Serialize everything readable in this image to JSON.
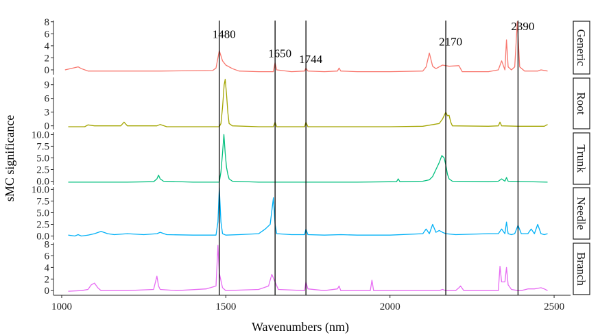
{
  "chart_data": {
    "type": "line",
    "xlabel": "Wavenumbers (nm)",
    "ylabel": "sMC significance",
    "xlim": [
      975,
      2550
    ],
    "x_ticks": [
      1000,
      1500,
      2000,
      2500
    ],
    "grid": false,
    "legend": "none",
    "vlines": [
      1480,
      1650,
      1744,
      2170,
      2390
    ],
    "annotations": [
      {
        "text": "1480",
        "x": 1480,
        "y": 6.0
      },
      {
        "text": "1650",
        "x": 1650,
        "y": 2.8
      },
      {
        "text": "1744",
        "x": 1744,
        "y": 1.8
      },
      {
        "text": "2170",
        "x": 2170,
        "y": 4.7
      },
      {
        "text": "2390",
        "x": 2390,
        "y": 7.3
      }
    ],
    "panels": [
      {
        "name": "Generic",
        "color": "#F8766D",
        "ylim": [
          -0.8,
          8.2
        ],
        "ticks": [
          0,
          2,
          4,
          6,
          8
        ],
        "tick_labels": [
          "0",
          "2",
          "4",
          "6",
          "8"
        ],
        "points": [
          [
            1010,
            0
          ],
          [
            1050,
            0.5
          ],
          [
            1060,
            0.2
          ],
          [
            1080,
            -0.2
          ],
          [
            1200,
            -0.2
          ],
          [
            1300,
            -0.2
          ],
          [
            1460,
            -0.1
          ],
          [
            1470,
            0.3
          ],
          [
            1480,
            3.2
          ],
          [
            1490,
            1.5
          ],
          [
            1500,
            0.8
          ],
          [
            1520,
            0.2
          ],
          [
            1540,
            -0.2
          ],
          [
            1600,
            -0.3
          ],
          [
            1645,
            -0.3
          ],
          [
            1650,
            1.2
          ],
          [
            1655,
            0
          ],
          [
            1700,
            -0.3
          ],
          [
            1740,
            -0.2
          ],
          [
            1744,
            0.3
          ],
          [
            1750,
            -0.2
          ],
          [
            1800,
            -0.3
          ],
          [
            1840,
            -0.2
          ],
          [
            1845,
            0.3
          ],
          [
            1850,
            -0.2
          ],
          [
            1900,
            -0.3
          ],
          [
            2000,
            -0.3
          ],
          [
            2100,
            -0.2
          ],
          [
            2110,
            0.5
          ],
          [
            2120,
            2.8
          ],
          [
            2130,
            0.6
          ],
          [
            2140,
            0.2
          ],
          [
            2150,
            0.5
          ],
          [
            2160,
            0.8
          ],
          [
            2170,
            0.7
          ],
          [
            2180,
            0.6
          ],
          [
            2210,
            0.7
          ],
          [
            2220,
            -0.3
          ],
          [
            2300,
            -0.3
          ],
          [
            2330,
            0
          ],
          [
            2340,
            1.5
          ],
          [
            2350,
            0
          ],
          [
            2355,
            5.0
          ],
          [
            2360,
            0.5
          ],
          [
            2370,
            0
          ],
          [
            2380,
            0.5
          ],
          [
            2388,
            8.0
          ],
          [
            2395,
            0.5
          ],
          [
            2410,
            -0.2
          ],
          [
            2450,
            -0.2
          ],
          [
            2460,
            0
          ],
          [
            2480,
            -0.2
          ]
        ]
      },
      {
        "name": "Root",
        "color": "#A3A500",
        "ylim": [
          -0.8,
          10.6
        ],
        "ticks": [
          0,
          3,
          6,
          9
        ],
        "tick_labels": [
          "0",
          "3",
          "6",
          "9"
        ],
        "points": [
          [
            1020,
            -0.2
          ],
          [
            1070,
            -0.2
          ],
          [
            1080,
            0.2
          ],
          [
            1100,
            0
          ],
          [
            1180,
            0
          ],
          [
            1190,
            0.8
          ],
          [
            1200,
            0
          ],
          [
            1290,
            0
          ],
          [
            1300,
            0.3
          ],
          [
            1320,
            -0.2
          ],
          [
            1480,
            -0.2
          ],
          [
            1485,
            0.5
          ],
          [
            1490,
            4
          ],
          [
            1495,
            9
          ],
          [
            1498,
            10.2
          ],
          [
            1502,
            7
          ],
          [
            1506,
            3
          ],
          [
            1510,
            0.5
          ],
          [
            1520,
            0
          ],
          [
            1600,
            -0.2
          ],
          [
            1645,
            -0.2
          ],
          [
            1650,
            0.8
          ],
          [
            1655,
            -0.2
          ],
          [
            1700,
            -0.2
          ],
          [
            1740,
            -0.2
          ],
          [
            1744,
            0.8
          ],
          [
            1750,
            -0.2
          ],
          [
            1800,
            -0.2
          ],
          [
            2000,
            -0.2
          ],
          [
            2100,
            -0.1
          ],
          [
            2150,
            0.5
          ],
          [
            2160,
            1.5
          ],
          [
            2170,
            3.0
          ],
          [
            2175,
            2.2
          ],
          [
            2180,
            2.3
          ],
          [
            2185,
            0.8
          ],
          [
            2190,
            0
          ],
          [
            2300,
            -0.1
          ],
          [
            2330,
            0
          ],
          [
            2335,
            0.8
          ],
          [
            2340,
            0
          ],
          [
            2390,
            -0.1
          ],
          [
            2470,
            -0.1
          ],
          [
            2480,
            0.3
          ]
        ]
      },
      {
        "name": "Trunk",
        "color": "#00BF7D",
        "ylim": [
          -0.8,
          10.5
        ],
        "ticks": [
          0.0,
          2.5,
          5.0,
          7.5,
          10.0
        ],
        "tick_labels": [
          "0.0",
          "2.5",
          "5.0",
          "7.5",
          "10.0"
        ],
        "points": [
          [
            1020,
            -0.2
          ],
          [
            1100,
            -0.2
          ],
          [
            1200,
            -0.2
          ],
          [
            1280,
            -0.1
          ],
          [
            1290,
            0.5
          ],
          [
            1295,
            1.3
          ],
          [
            1300,
            0.5
          ],
          [
            1310,
            0
          ],
          [
            1400,
            -0.2
          ],
          [
            1480,
            -0.2
          ],
          [
            1485,
            2
          ],
          [
            1490,
            6
          ],
          [
            1494,
            10
          ],
          [
            1498,
            6
          ],
          [
            1502,
            3
          ],
          [
            1506,
            1.5
          ],
          [
            1510,
            0.5
          ],
          [
            1520,
            0
          ],
          [
            1600,
            -0.2
          ],
          [
            1900,
            -0.2
          ],
          [
            2020,
            -0.1
          ],
          [
            2025,
            0.5
          ],
          [
            2030,
            -0.1
          ],
          [
            2100,
            0
          ],
          [
            2120,
            0.3
          ],
          [
            2130,
            1
          ],
          [
            2140,
            2.5
          ],
          [
            2150,
            4
          ],
          [
            2158,
            5.5
          ],
          [
            2165,
            5.0
          ],
          [
            2170,
            3.5
          ],
          [
            2175,
            1.5
          ],
          [
            2180,
            0.5
          ],
          [
            2190,
            0
          ],
          [
            2300,
            -0.1
          ],
          [
            2330,
            0
          ],
          [
            2340,
            0.5
          ],
          [
            2350,
            0
          ],
          [
            2355,
            0.8
          ],
          [
            2360,
            0
          ],
          [
            2480,
            -0.2
          ]
        ]
      },
      {
        "name": "Needle",
        "color": "#00B0F6",
        "ylim": [
          -0.8,
          10.5
        ],
        "ticks": [
          0.0,
          2.5,
          5.0,
          7.5,
          10.0
        ],
        "tick_labels": [
          "0.0",
          "2.5",
          "5.0",
          "7.5",
          "10.0"
        ],
        "points": [
          [
            1020,
            0.2
          ],
          [
            1040,
            0
          ],
          [
            1050,
            0.3
          ],
          [
            1060,
            0
          ],
          [
            1080,
            0.2
          ],
          [
            1100,
            0.5
          ],
          [
            1120,
            1.0
          ],
          [
            1140,
            0.5
          ],
          [
            1160,
            0.3
          ],
          [
            1200,
            0.5
          ],
          [
            1250,
            0.3
          ],
          [
            1290,
            0.5
          ],
          [
            1300,
            0.8
          ],
          [
            1320,
            0.3
          ],
          [
            1400,
            0.2
          ],
          [
            1470,
            0.2
          ],
          [
            1476,
            3
          ],
          [
            1480,
            10.3
          ],
          [
            1485,
            3
          ],
          [
            1490,
            0.5
          ],
          [
            1500,
            0.2
          ],
          [
            1540,
            0.3
          ],
          [
            1600,
            0.5
          ],
          [
            1620,
            1.5
          ],
          [
            1635,
            2.5
          ],
          [
            1645,
            8.2
          ],
          [
            1650,
            2.5
          ],
          [
            1655,
            0.5
          ],
          [
            1700,
            0.3
          ],
          [
            1740,
            0.3
          ],
          [
            1744,
            1.5
          ],
          [
            1750,
            0.3
          ],
          [
            1800,
            0.2
          ],
          [
            1850,
            0.3
          ],
          [
            1900,
            0.2
          ],
          [
            2000,
            0.2
          ],
          [
            2100,
            0.5
          ],
          [
            2110,
            1.5
          ],
          [
            2120,
            0.5
          ],
          [
            2130,
            2.5
          ],
          [
            2140,
            0.8
          ],
          [
            2150,
            1.2
          ],
          [
            2160,
            0.8
          ],
          [
            2170,
            0.5
          ],
          [
            2200,
            0.3
          ],
          [
            2300,
            0.5
          ],
          [
            2330,
            0.5
          ],
          [
            2340,
            1.5
          ],
          [
            2350,
            0.5
          ],
          [
            2355,
            3.0
          ],
          [
            2360,
            0.5
          ],
          [
            2370,
            0.3
          ],
          [
            2380,
            0.5
          ],
          [
            2390,
            2.3
          ],
          [
            2400,
            0.5
          ],
          [
            2420,
            0.5
          ],
          [
            2430,
            1.5
          ],
          [
            2440,
            0.5
          ],
          [
            2450,
            2.5
          ],
          [
            2460,
            0.5
          ],
          [
            2470,
            0.3
          ],
          [
            2480,
            0.5
          ]
        ]
      },
      {
        "name": "Branch",
        "color": "#E76BF3",
        "ylim": [
          -0.8,
          8.3
        ],
        "ticks": [
          0,
          2,
          4,
          6,
          8
        ],
        "tick_labels": [
          "0",
          "2",
          "4",
          "6",
          "8"
        ],
        "points": [
          [
            1020,
            -0.1
          ],
          [
            1060,
            0
          ],
          [
            1080,
            0.2
          ],
          [
            1090,
            1.0
          ],
          [
            1100,
            1.3
          ],
          [
            1110,
            0.5
          ],
          [
            1120,
            0
          ],
          [
            1200,
            0
          ],
          [
            1280,
            0.2
          ],
          [
            1290,
            2.5
          ],
          [
            1295,
            0.8
          ],
          [
            1300,
            0.2
          ],
          [
            1350,
            0
          ],
          [
            1440,
            0.3
          ],
          [
            1470,
            0.8
          ],
          [
            1476,
            7.8
          ],
          [
            1480,
            3
          ],
          [
            1490,
            0.5
          ],
          [
            1500,
            0
          ],
          [
            1600,
            0.2
          ],
          [
            1630,
            0.8
          ],
          [
            1640,
            2.8
          ],
          [
            1650,
            1.5
          ],
          [
            1660,
            0.2
          ],
          [
            1740,
            0
          ],
          [
            1744,
            1.5
          ],
          [
            1750,
            0.3
          ],
          [
            1800,
            0
          ],
          [
            1840,
            0.3
          ],
          [
            1845,
            0.8
          ],
          [
            1850,
            0
          ],
          [
            1940,
            0
          ],
          [
            1945,
            1.8
          ],
          [
            1950,
            0
          ],
          [
            2000,
            0
          ],
          [
            2150,
            0
          ],
          [
            2160,
            0.2
          ],
          [
            2170,
            0
          ],
          [
            2200,
            0
          ],
          [
            2210,
            0.5
          ],
          [
            2215,
            0.8
          ],
          [
            2225,
            0
          ],
          [
            2300,
            0
          ],
          [
            2330,
            0
          ],
          [
            2335,
            4.2
          ],
          [
            2340,
            1.5
          ],
          [
            2350,
            1.5
          ],
          [
            2355,
            4.0
          ],
          [
            2360,
            1.0
          ],
          [
            2370,
            0.2
          ],
          [
            2390,
            0
          ],
          [
            2400,
            0
          ],
          [
            2420,
            0.3
          ],
          [
            2440,
            0.3
          ],
          [
            2460,
            0.5
          ],
          [
            2470,
            0.3
          ],
          [
            2480,
            0
          ]
        ]
      }
    ]
  }
}
